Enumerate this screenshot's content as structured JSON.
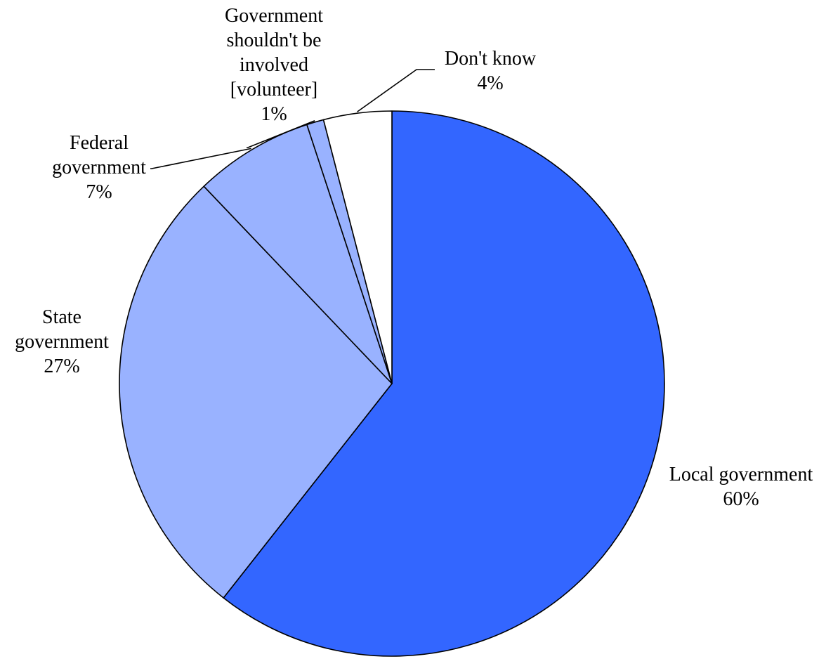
{
  "chart_data": {
    "type": "pie",
    "start_angle_deg": 0,
    "direction": "clockwise",
    "slices": [
      {
        "label": [
          "Local government"
        ],
        "value": 60,
        "value_label": "60%",
        "color": "#3366ff"
      },
      {
        "label": [
          "State",
          "government"
        ],
        "value": 27,
        "value_label": "27%",
        "color": "#99b2ff"
      },
      {
        "label": [
          "Federal",
          "government"
        ],
        "value": 7,
        "value_label": "7%",
        "color": "#99b2ff"
      },
      {
        "label": [
          "Government",
          "shouldn't be",
          "involved",
          "[volunteer]"
        ],
        "value": 1,
        "value_label": "1%",
        "color": "#99b2ff"
      },
      {
        "label": [
          "Don't know"
        ],
        "value": 4,
        "value_label": "4%",
        "color": "#ffffff"
      }
    ]
  }
}
